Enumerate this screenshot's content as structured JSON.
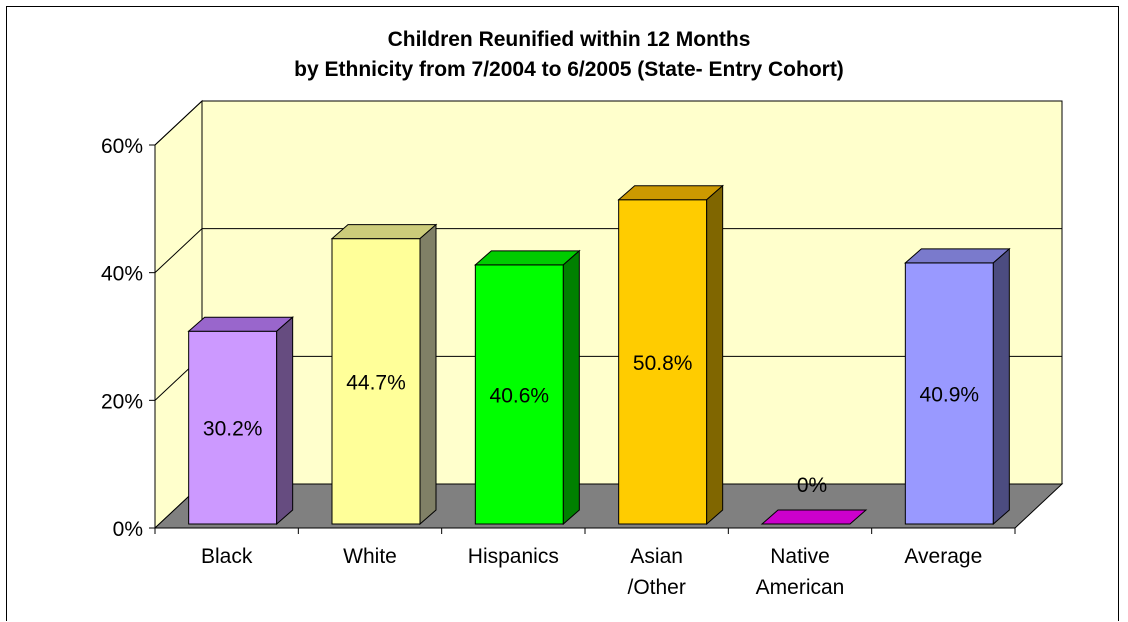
{
  "chart_data": {
    "type": "bar",
    "title_lines": [
      "Children Reunified within 12 Months",
      "by Ethnicity from 7/2004 to 6/2005 (State- Entry Cohort)"
    ],
    "categories": [
      [
        "Black"
      ],
      [
        "White"
      ],
      [
        "Hispanics"
      ],
      [
        "Asian",
        "/Other"
      ],
      [
        "Native",
        "American"
      ],
      [
        "Average"
      ]
    ],
    "values": [
      30.2,
      44.7,
      40.6,
      50.8,
      0,
      40.9
    ],
    "value_labels": [
      "30.2%",
      "44.7%",
      "40.6%",
      "50.8%",
      "0%",
      "40.9%"
    ],
    "yticks": [
      0,
      20,
      40,
      60
    ],
    "ytick_labels": [
      "0%",
      "20%",
      "40%",
      "60%"
    ],
    "ylim": [
      0,
      60
    ],
    "grid": true,
    "style": "3d-bar",
    "colors": {
      "wall": "#FFFFCC",
      "floor": "#808080",
      "gridline": "#000000",
      "bars": [
        {
          "front": "#CC99FF",
          "top": "#9966CC",
          "side": "#664C80"
        },
        {
          "front": "#FFFF99",
          "top": "#CCCC7A",
          "side": "#808066"
        },
        {
          "front": "#00FF00",
          "top": "#00CC00",
          "side": "#008000"
        },
        {
          "front": "#FFCC00",
          "top": "#CC9900",
          "side": "#806600"
        },
        {
          "front": "#CC00CC",
          "top": "#CC00CC",
          "side": "#800080"
        },
        {
          "front": "#9999FF",
          "top": "#7A7ACC",
          "side": "#4C4C80"
        }
      ]
    }
  }
}
